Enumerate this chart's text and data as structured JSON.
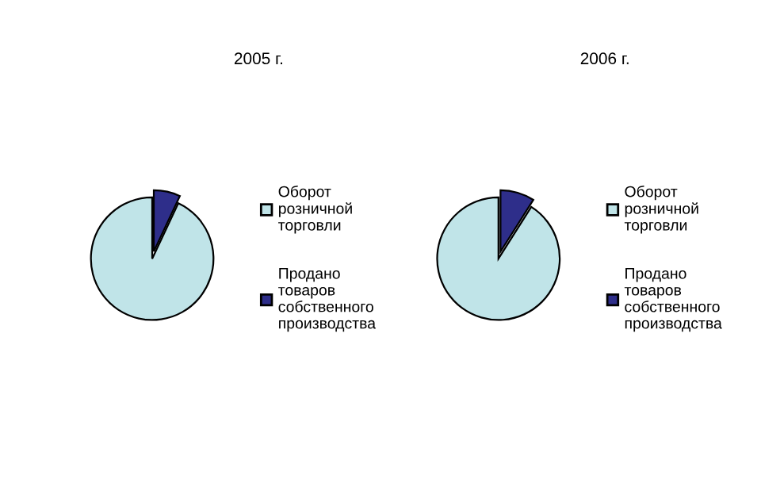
{
  "chart_data": [
    {
      "type": "pie",
      "title": "2005 г.",
      "categories": [
        "Оборот розничной торговли",
        "Продано товаров собственного производства"
      ],
      "values": [
        93,
        7
      ],
      "colors": [
        "#c0e4e8",
        "#2e2e8a"
      ],
      "legend": "right"
    },
    {
      "type": "pie",
      "title": "2006 г.",
      "categories": [
        "Оборот розничной торговли",
        "Продано товаров собственного производства"
      ],
      "values": [
        91,
        9
      ],
      "colors": [
        "#c0e4e8",
        "#2e2e8a"
      ],
      "legend": "right"
    }
  ]
}
